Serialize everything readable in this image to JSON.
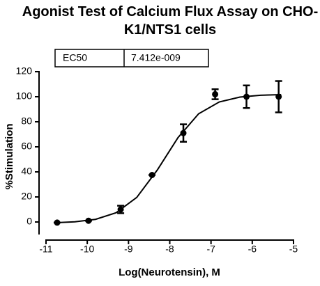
{
  "chart_data": {
    "type": "scatter",
    "title": "Agonist Test of Calcium Flux Assay on CHO-K1/NTS1 cells",
    "xlabel": "Log(Neurotensin), M",
    "ylabel": "%Stimulation",
    "table": {
      "label": "EC50",
      "value": "7.412e-009"
    },
    "x": [
      -10.73,
      -9.97,
      -9.19,
      -8.43,
      -7.67,
      -6.9,
      -6.14,
      -5.36
    ],
    "values": [
      -0.5,
      1,
      10,
      37.5,
      71,
      102,
      100,
      100
    ],
    "errors": [
      0,
      0,
      3,
      0,
      7,
      4,
      9,
      12.5
    ],
    "color": "#000000",
    "fit": {
      "x": [
        -10.8,
        -10.3,
        -9.8,
        -9.3,
        -8.8,
        -8.3,
        -7.8,
        -7.3,
        -6.8,
        -6.3,
        -5.8,
        -5.3
      ],
      "values": [
        -0.6,
        0.13,
        2.1,
        7.4,
        19.6,
        41.6,
        67.4,
        86.4,
        95.8,
        99.7,
        101.2,
        101.7
      ]
    },
    "xlim": [
      -11,
      -5
    ],
    "xticks": [
      -11,
      -10,
      -9,
      -8,
      -7,
      -6,
      -5
    ],
    "ylim": [
      -10,
      120
    ],
    "yticks": [
      0,
      20,
      40,
      60,
      80,
      100,
      120
    ],
    "grid": false
  }
}
